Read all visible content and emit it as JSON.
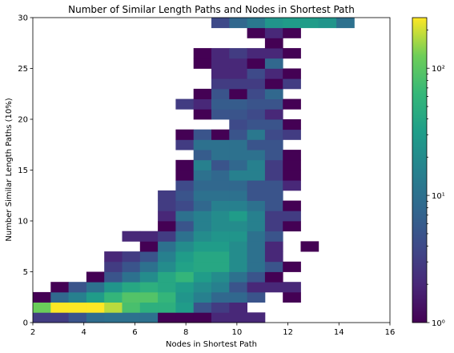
{
  "chart_data": {
    "type": "heatmap",
    "title": "Number of Similar Length Paths and Nodes in Shortest Path",
    "xlabel": "Nodes in Shortest Path",
    "ylabel": "Number Similar Length Paths (10%)",
    "xlim": [
      2,
      16
    ],
    "ylim": [
      0,
      30
    ],
    "x_bin_width": 0.7,
    "y_bin_width": 1,
    "xticks": [
      2,
      4,
      6,
      8,
      10,
      12,
      14,
      16
    ],
    "xtick_labels": [
      "2",
      "4",
      "6",
      "8",
      "10",
      "12",
      "14",
      "16"
    ],
    "yticks": [
      0,
      5,
      10,
      15,
      20,
      25,
      30
    ],
    "ytick_labels": [
      "0",
      "5",
      "10",
      "15",
      "20",
      "25",
      "30"
    ],
    "grid": false,
    "colormap": "viridis",
    "colorbar": {
      "scale": "log",
      "range": [
        1,
        250
      ],
      "ticks": [
        1,
        10,
        100
      ],
      "tick_labels": [
        "10⁰",
        "10¹",
        "10²"
      ]
    },
    "x_bin_starts": [
      2.0,
      2.7,
      3.4,
      4.1,
      4.8,
      5.5,
      6.2,
      6.9,
      7.6,
      8.3,
      9.0,
      9.7,
      10.4,
      11.1,
      11.8,
      12.5,
      13.2,
      13.9,
      14.6,
      15.3
    ],
    "rows": [
      {
        "y": 0,
        "counts": [
          3,
          3,
          5,
          9,
          10,
          10,
          10,
          1,
          1,
          1,
          2,
          2,
          2,
          null,
          null,
          null,
          null,
          null,
          null,
          null
        ]
      },
      {
        "y": 1,
        "counts": [
          120,
          250,
          250,
          250,
          180,
          80,
          50,
          50,
          30,
          5,
          3,
          2,
          null,
          null,
          null,
          null,
          null,
          null,
          null,
          null
        ]
      },
      {
        "y": 2,
        "counts": [
          1,
          8,
          15,
          30,
          60,
          90,
          90,
          60,
          25,
          15,
          8,
          8,
          5,
          null,
          1,
          null,
          null,
          null,
          null,
          null
        ]
      },
      {
        "y": 3,
        "counts": [
          null,
          1,
          5,
          10,
          25,
          40,
          50,
          40,
          30,
          20,
          15,
          5,
          2,
          2,
          2,
          null,
          null,
          null,
          null,
          null
        ]
      },
      {
        "y": 4,
        "counts": [
          null,
          null,
          null,
          1,
          5,
          10,
          20,
          40,
          60,
          30,
          20,
          10,
          5,
          1,
          null,
          null,
          null,
          null,
          null,
          null
        ]
      },
      {
        "y": 5,
        "counts": [
          null,
          null,
          null,
          null,
          3,
          5,
          10,
          20,
          35,
          40,
          40,
          20,
          10,
          5,
          1,
          null,
          null,
          null,
          null,
          null
        ]
      },
      {
        "y": 6,
        "counts": [
          null,
          null,
          null,
          null,
          2,
          3,
          5,
          15,
          30,
          40,
          40,
          20,
          10,
          2,
          null,
          null,
          null,
          null,
          null,
          null
        ]
      },
      {
        "y": 7,
        "counts": [
          null,
          null,
          null,
          null,
          null,
          null,
          1,
          10,
          20,
          30,
          30,
          20,
          10,
          2,
          null,
          1,
          null,
          null,
          null,
          null
        ]
      },
      {
        "y": 8,
        "counts": [
          null,
          null,
          null,
          null,
          null,
          2,
          2,
          3,
          10,
          20,
          25,
          25,
          10,
          5,
          null,
          null,
          null,
          null,
          null,
          null
        ]
      },
      {
        "y": 9,
        "counts": [
          null,
          null,
          null,
          null,
          null,
          null,
          null,
          1,
          5,
          15,
          20,
          20,
          15,
          3,
          1,
          null,
          null,
          null,
          null,
          null
        ]
      },
      {
        "y": 10,
        "counts": [
          null,
          null,
          null,
          null,
          null,
          null,
          null,
          2,
          10,
          15,
          20,
          30,
          15,
          3,
          3,
          null,
          null,
          null,
          null,
          null
        ]
      },
      {
        "y": 11,
        "counts": [
          null,
          null,
          null,
          null,
          null,
          null,
          null,
          3,
          4,
          8,
          15,
          15,
          10,
          5,
          1,
          null,
          null,
          null,
          null,
          null
        ]
      },
      {
        "y": 12,
        "counts": [
          null,
          null,
          null,
          null,
          null,
          null,
          null,
          3,
          5,
          10,
          10,
          10,
          5,
          5,
          null,
          null,
          null,
          null,
          null,
          null
        ]
      },
      {
        "y": 13,
        "counts": [
          null,
          null,
          null,
          null,
          null,
          null,
          null,
          null,
          4,
          8,
          8,
          8,
          5,
          5,
          2,
          null,
          null,
          null,
          null,
          null
        ]
      },
      {
        "y": 14,
        "counts": [
          null,
          null,
          null,
          null,
          null,
          null,
          null,
          null,
          1,
          10,
          8,
          15,
          15,
          3,
          1,
          null,
          null,
          null,
          null,
          null
        ]
      },
      {
        "y": 15,
        "counts": [
          null,
          null,
          null,
          null,
          null,
          null,
          null,
          null,
          1,
          15,
          5,
          8,
          15,
          3,
          1,
          null,
          null,
          null,
          null,
          null
        ]
      },
      {
        "y": 16,
        "counts": [
          null,
          null,
          null,
          null,
          null,
          null,
          null,
          null,
          null,
          6,
          10,
          10,
          10,
          5,
          1,
          null,
          null,
          null,
          null,
          null
        ]
      },
      {
        "y": 17,
        "counts": [
          null,
          null,
          null,
          null,
          null,
          null,
          null,
          null,
          3,
          10,
          10,
          10,
          5,
          5,
          null,
          null,
          null,
          null,
          null,
          null
        ]
      },
      {
        "y": 18,
        "counts": [
          null,
          null,
          null,
          null,
          null,
          null,
          null,
          null,
          1,
          5,
          1,
          5,
          12,
          4,
          3,
          null,
          null,
          null,
          null,
          null
        ]
      },
      {
        "y": 19,
        "counts": [
          null,
          null,
          null,
          null,
          null,
          null,
          null,
          null,
          null,
          null,
          null,
          4,
          5,
          5,
          1,
          null,
          null,
          null,
          null,
          null
        ]
      },
      {
        "y": 20,
        "counts": [
          null,
          null,
          null,
          null,
          null,
          null,
          null,
          null,
          null,
          1,
          5,
          5,
          4,
          2,
          null,
          null,
          null,
          null,
          null,
          null
        ]
      },
      {
        "y": 21,
        "counts": [
          null,
          null,
          null,
          null,
          null,
          null,
          null,
          null,
          3,
          2,
          6,
          6,
          5,
          5,
          1,
          null,
          null,
          null,
          null,
          null
        ]
      },
      {
        "y": 22,
        "counts": [
          null,
          null,
          null,
          null,
          null,
          null,
          null,
          null,
          null,
          1,
          5,
          1,
          4,
          8,
          null,
          null,
          null,
          null,
          null,
          null
        ]
      },
      {
        "y": 23,
        "counts": [
          null,
          null,
          null,
          null,
          null,
          null,
          null,
          null,
          null,
          null,
          3,
          3,
          3,
          1,
          3,
          null,
          null,
          null,
          null,
          null
        ]
      },
      {
        "y": 24,
        "counts": [
          null,
          null,
          null,
          null,
          null,
          null,
          null,
          null,
          null,
          null,
          2,
          2,
          4,
          2,
          1,
          null,
          null,
          null,
          null,
          null
        ]
      },
      {
        "y": 25,
        "counts": [
          null,
          null,
          null,
          null,
          null,
          null,
          null,
          null,
          null,
          1,
          2,
          2,
          1,
          8,
          null,
          null,
          null,
          null,
          null,
          null
        ]
      },
      {
        "y": 26,
        "counts": [
          null,
          null,
          null,
          null,
          null,
          null,
          null,
          null,
          null,
          1,
          2,
          3,
          2,
          2,
          1,
          null,
          null,
          null,
          null,
          null
        ]
      },
      {
        "y": 27,
        "counts": [
          null,
          null,
          null,
          null,
          null,
          null,
          null,
          null,
          null,
          null,
          null,
          null,
          null,
          1,
          null,
          null,
          null,
          null,
          null,
          null
        ]
      },
      {
        "y": 28,
        "counts": [
          null,
          null,
          null,
          null,
          null,
          null,
          null,
          null,
          null,
          null,
          null,
          null,
          1,
          2,
          1,
          null,
          null,
          null,
          null,
          null
        ]
      },
      {
        "y": 29,
        "counts": [
          null,
          null,
          null,
          null,
          null,
          null,
          null,
          null,
          null,
          null,
          4,
          8,
          12,
          25,
          30,
          30,
          25,
          10,
          null,
          null
        ]
      }
    ]
  }
}
